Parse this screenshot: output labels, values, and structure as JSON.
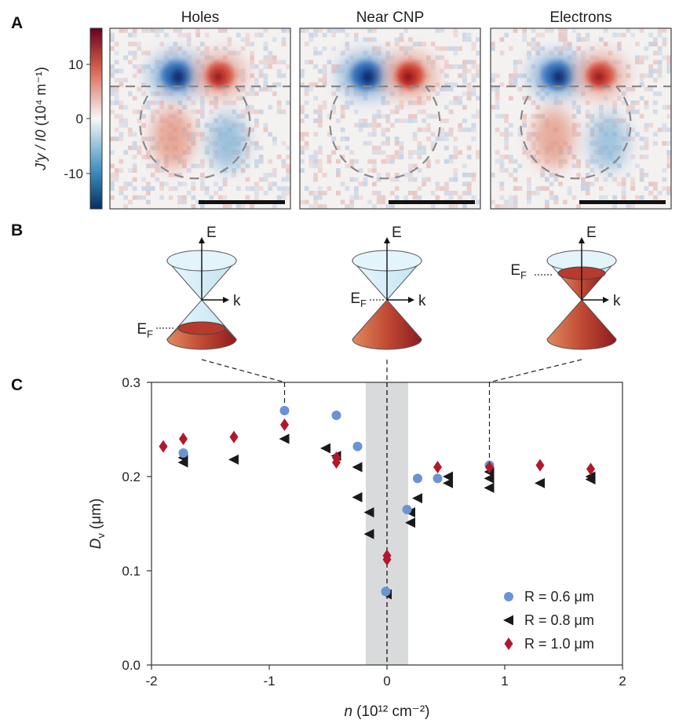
{
  "colors": {
    "red": "#b2182b",
    "blue": "#2166ac",
    "light_blue_pt": "#6a93d3",
    "black": "#1a1a1a",
    "cone_top": "#d6eef8",
    "cone_fill_dark": "#8b1a1f",
    "cone_fill_light": "#d8704a",
    "shade": "#d9dadc"
  },
  "panel_a": {
    "label": "A",
    "colorbar": {
      "ylabel_main": "J′y / I0",
      "ylabel_unit": "(10⁴ m⁻¹)",
      "ticks": [
        "10",
        "0",
        "-10"
      ]
    },
    "maps": [
      {
        "title": "Holes",
        "pos_amp": 0.75,
        "neg_amp": 0.9,
        "lobe_amp": 0.35,
        "has_lobes": true
      },
      {
        "title": "Near CNP",
        "pos_amp": 1.0,
        "neg_amp": 1.0,
        "lobe_amp": 0.0,
        "has_lobes": false
      },
      {
        "title": "Electrons",
        "pos_amp": 0.75,
        "neg_amp": 0.85,
        "lobe_amp": 0.33,
        "has_lobes": true
      }
    ]
  },
  "panel_b": {
    "label": "B",
    "cones": [
      {
        "name": "holes",
        "e_label": "E",
        "k_label": "k",
        "ef_label": "E",
        "ef_sub": "F"
      },
      {
        "name": "cnp",
        "e_label": "E",
        "k_label": "k",
        "ef_label": "E",
        "ef_sub": "F"
      },
      {
        "name": "electrons",
        "e_label": "E",
        "k_label": "k",
        "ef_label": "E",
        "ef_sub": "F"
      }
    ]
  },
  "chart_data": {
    "type": "scatter",
    "panel_label": "C",
    "xlabel_var": "n",
    "xlabel_unit": "(10¹² cm⁻²)",
    "ylabel_var": "D",
    "ylabel_sub": "v",
    "ylabel_unit": "(μm)",
    "xlim": [
      -2,
      2
    ],
    "ylim": [
      0,
      0.3
    ],
    "xticks": [
      -2,
      -1,
      0,
      1,
      2
    ],
    "xtick_labels": [
      "-2",
      "-1",
      "0",
      "1",
      "2"
    ],
    "yticks": [
      0,
      0.1,
      0.2,
      0.3
    ],
    "ytick_labels": [
      "0.0",
      "0.1",
      "0.2",
      "0.3"
    ],
    "shaded_band": [
      -0.18,
      0.18
    ],
    "guide_lines_x": [
      -0.87,
      0,
      0.87
    ],
    "legend_position": "bottom-right",
    "series": [
      {
        "name": "R = 0.6 μm",
        "marker": "circle",
        "color": "#6a93d3",
        "points": [
          [
            -1.73,
            0.225
          ],
          [
            -0.87,
            0.27
          ],
          [
            -0.43,
            0.265
          ],
          [
            -0.25,
            0.232
          ],
          [
            -0.01,
            0.078
          ],
          [
            0.17,
            0.165
          ],
          [
            0.26,
            0.198
          ],
          [
            0.43,
            0.198
          ],
          [
            0.87,
            0.212
          ]
        ]
      },
      {
        "name": "R = 0.8 μm",
        "marker": "triangle-left",
        "color": "#1a1a1a",
        "points": [
          [
            -1.73,
            0.22
          ],
          [
            -1.73,
            0.215
          ],
          [
            -1.3,
            0.218
          ],
          [
            -0.87,
            0.24
          ],
          [
            -0.52,
            0.23
          ],
          [
            -0.43,
            0.222
          ],
          [
            -0.25,
            0.21
          ],
          [
            -0.25,
            0.178
          ],
          [
            -0.15,
            0.162
          ],
          [
            -0.15,
            0.139
          ],
          [
            0.0,
            0.075
          ],
          [
            0.2,
            0.162
          ],
          [
            0.2,
            0.151
          ],
          [
            0.26,
            0.177
          ],
          [
            0.52,
            0.2
          ],
          [
            0.52,
            0.193
          ],
          [
            0.87,
            0.205
          ],
          [
            0.87,
            0.198
          ],
          [
            0.87,
            0.188
          ],
          [
            1.3,
            0.193
          ],
          [
            1.73,
            0.2
          ],
          [
            1.73,
            0.197
          ]
        ]
      },
      {
        "name": "R = 1.0 μm",
        "marker": "diamond",
        "color": "#b2182b",
        "points": [
          [
            -1.9,
            0.232
          ],
          [
            -1.73,
            0.24
          ],
          [
            -1.3,
            0.242
          ],
          [
            -0.87,
            0.255
          ],
          [
            -0.43,
            0.22
          ],
          [
            -0.43,
            0.215
          ],
          [
            0.0,
            0.116
          ],
          [
            0.0,
            0.112
          ],
          [
            0.43,
            0.21
          ],
          [
            0.87,
            0.21
          ],
          [
            1.3,
            0.212
          ],
          [
            1.73,
            0.208
          ]
        ]
      }
    ]
  }
}
